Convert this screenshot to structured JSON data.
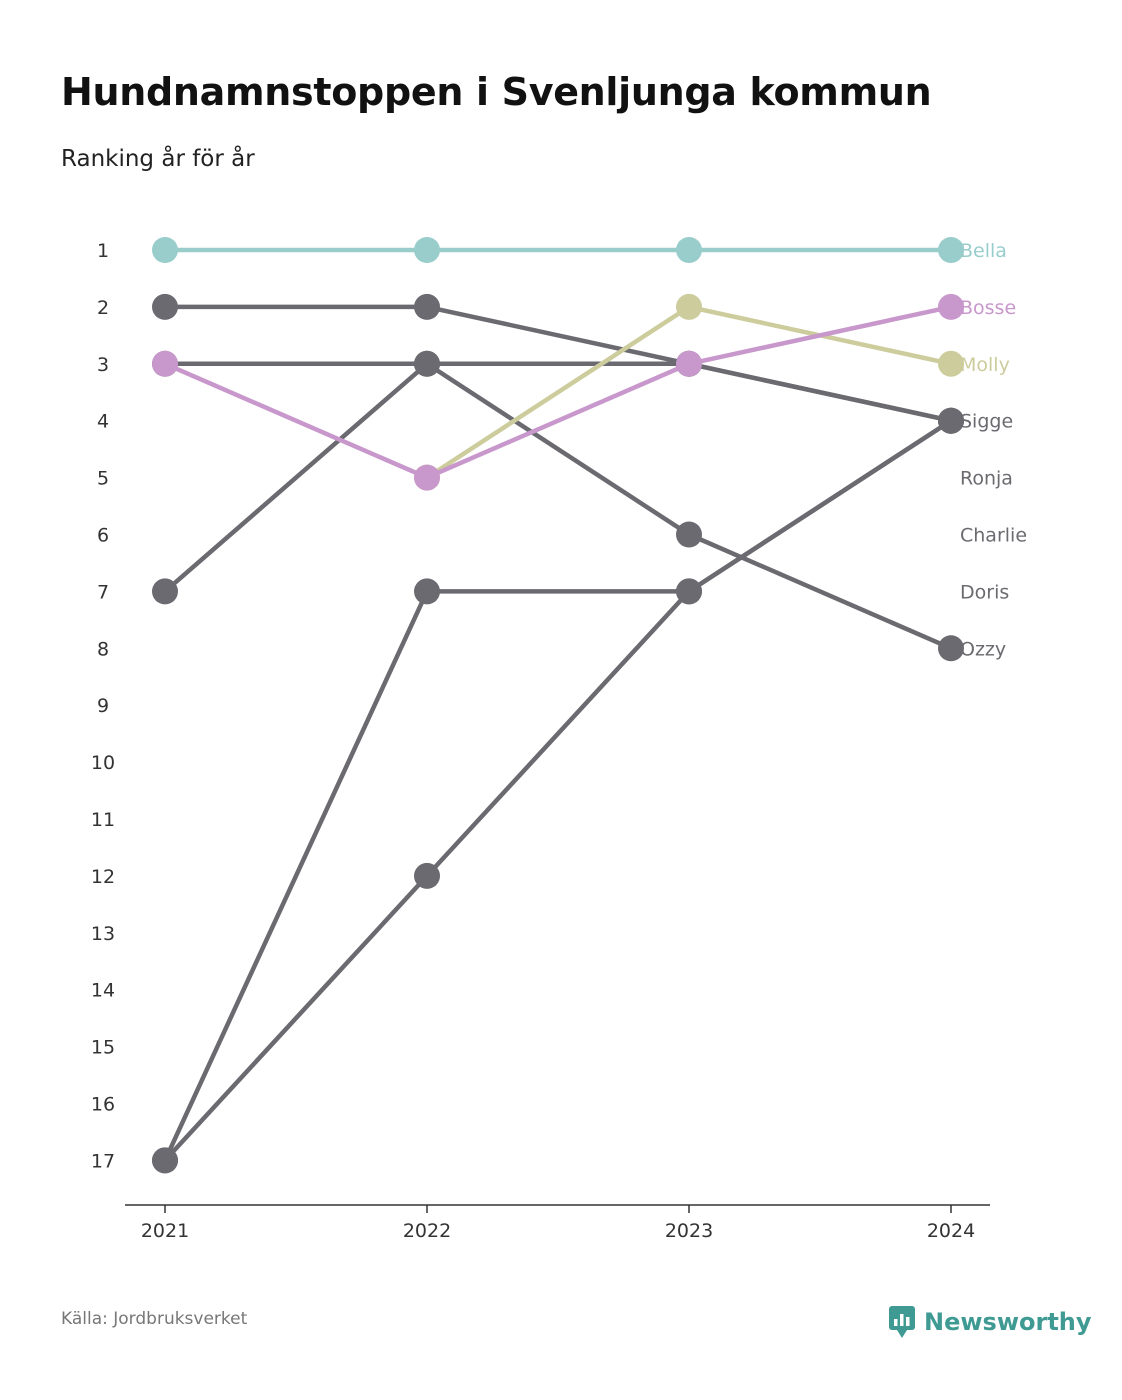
{
  "title": "Hundnamnstoppen i Svenljunga kommun",
  "subtitle": "Ranking år för år",
  "source": "Källa: Jordbruksverket",
  "brand": {
    "name": "Newsworthy",
    "icon": "newsworthy-logo-icon",
    "color": "#3f9a93"
  },
  "chart_data": {
    "type": "line",
    "x": [
      "2021",
      "2022",
      "2023",
      "2024"
    ],
    "y_ticks": [
      1,
      2,
      3,
      4,
      5,
      6,
      7,
      8,
      9,
      10,
      11,
      12,
      13,
      14,
      15,
      16,
      17
    ],
    "ylim": [
      1,
      17
    ],
    "y_reversed": true,
    "grid": false,
    "legend": "end-labels-right",
    "series": [
      {
        "name": "Ozzy",
        "values": [
          3,
          3,
          6,
          8
        ],
        "color": "#6b6a70"
      },
      {
        "name": "Doris",
        "values": [
          17,
          7,
          7,
          4
        ],
        "color": "#6b6a70"
      },
      {
        "name": "Charlie",
        "values": [
          17,
          12,
          7,
          4
        ],
        "color": "#6b6a70"
      },
      {
        "name": "Ronja",
        "values": [
          7,
          3,
          3,
          4
        ],
        "color": "#6b6a70"
      },
      {
        "name": "Sigge",
        "values": [
          2,
          2,
          3,
          4
        ],
        "color": "#6b6a70"
      },
      {
        "name": "Molly",
        "values": [
          null,
          5,
          2,
          3
        ],
        "color": "#cdcc9c"
      },
      {
        "name": "Bosse",
        "values": [
          3,
          5,
          3,
          2
        ],
        "color": "#c897cc"
      },
      {
        "name": "Bella",
        "values": [
          1,
          1,
          1,
          1
        ],
        "color": "#99cdcc"
      }
    ],
    "end_labels": [
      {
        "name": "Bella",
        "rank": 1,
        "color": "#99cdcc"
      },
      {
        "name": "Bosse",
        "rank": 2,
        "color": "#c897cc"
      },
      {
        "name": "Molly",
        "rank": 3,
        "color": "#cdcc9c"
      },
      {
        "name": "Sigge",
        "rank": 4,
        "color": "#6b6a70"
      },
      {
        "name": "Ronja",
        "rank": 5,
        "color": "#6b6a70"
      },
      {
        "name": "Charlie",
        "rank": 6,
        "color": "#6b6a70"
      },
      {
        "name": "Doris",
        "rank": 7,
        "color": "#6b6a70"
      },
      {
        "name": "Ozzy",
        "rank": 8,
        "color": "#6b6a70"
      }
    ]
  }
}
